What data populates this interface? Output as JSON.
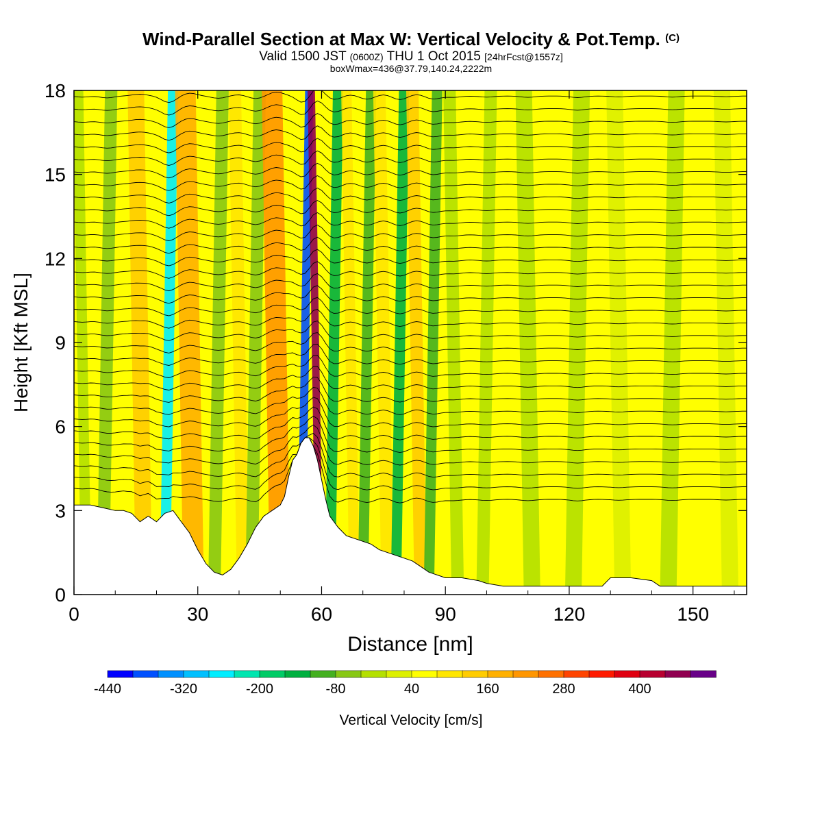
{
  "titles": {
    "main": "Wind-Parallel Section at Max W: Vertical Velocity & Pot.Temp.",
    "copyright": "(C)",
    "valid_prefix": "Valid 1500 JST",
    "valid_utc": "(0600Z)",
    "valid_date": "THU 1 Oct 2015",
    "forecast": "[24hrFcst@1557z]",
    "boxwmax": "boxWmax=436@37.79,140.24,2222m"
  },
  "chart_data": {
    "type": "heatmap",
    "xlabel": "Distance [nm]",
    "ylabel": "Height [Kft MSL]",
    "xlim": [
      0,
      163
    ],
    "ylim": [
      0,
      18
    ],
    "x_ticks": [
      0,
      30,
      60,
      90,
      120,
      150
    ],
    "y_ticks": [
      0,
      3,
      6,
      9,
      12,
      15,
      18
    ],
    "terrain_kft": [
      [
        0,
        3.2
      ],
      [
        4,
        3.2
      ],
      [
        7,
        3.1
      ],
      [
        10,
        3.0
      ],
      [
        12,
        3.0
      ],
      [
        14,
        2.9
      ],
      [
        16,
        2.6
      ],
      [
        18,
        2.8
      ],
      [
        20,
        2.6
      ],
      [
        22,
        2.9
      ],
      [
        24,
        3.0
      ],
      [
        26,
        2.6
      ],
      [
        28,
        2.2
      ],
      [
        30,
        1.6
      ],
      [
        32,
        1.1
      ],
      [
        34,
        0.8
      ],
      [
        36,
        0.7
      ],
      [
        38,
        0.9
      ],
      [
        40,
        1.3
      ],
      [
        42,
        1.8
      ],
      [
        44,
        2.4
      ],
      [
        46,
        2.8
      ],
      [
        48,
        3.0
      ],
      [
        50,
        3.2
      ],
      [
        51,
        3.5
      ],
      [
        52,
        4.2
      ],
      [
        53,
        4.8
      ],
      [
        54,
        5.0
      ],
      [
        55,
        5.4
      ],
      [
        56,
        5.6
      ],
      [
        57,
        5.6
      ],
      [
        58,
        5.3
      ],
      [
        59,
        4.8
      ],
      [
        60,
        4.1
      ],
      [
        61,
        3.4
      ],
      [
        62,
        2.8
      ],
      [
        64,
        2.4
      ],
      [
        66,
        2.1
      ],
      [
        68,
        2.0
      ],
      [
        70,
        1.9
      ],
      [
        72,
        1.8
      ],
      [
        74,
        1.6
      ],
      [
        76,
        1.5
      ],
      [
        78,
        1.4
      ],
      [
        80,
        1.3
      ],
      [
        82,
        1.2
      ],
      [
        84,
        1.0
      ],
      [
        86,
        0.8
      ],
      [
        88,
        0.7
      ],
      [
        90,
        0.6
      ],
      [
        94,
        0.6
      ],
      [
        98,
        0.5
      ],
      [
        100,
        0.4
      ],
      [
        104,
        0.3
      ],
      [
        110,
        0.3
      ],
      [
        120,
        0.3
      ],
      [
        128,
        0.3
      ],
      [
        130,
        0.6
      ],
      [
        135,
        0.6
      ],
      [
        140,
        0.5
      ],
      [
        142,
        0.3
      ],
      [
        150,
        0.3
      ],
      [
        163,
        0.3
      ]
    ],
    "w_features": [
      {
        "x": 2,
        "w": -60,
        "width": 2.5
      },
      {
        "x": 8,
        "w": -90,
        "width": 3
      },
      {
        "x": 16,
        "w": 80,
        "width": 4
      },
      {
        "x": 23,
        "w": -300,
        "width": 2.5
      },
      {
        "x": 28,
        "w": 130,
        "width": 5
      },
      {
        "x": 35,
        "w": -100,
        "width": 3
      },
      {
        "x": 40,
        "w": 60,
        "width": 3
      },
      {
        "x": 44,
        "w": -120,
        "width": 3
      },
      {
        "x": 49,
        "w": 170,
        "width": 5
      },
      {
        "x": 56,
        "w": -440,
        "width": 2
      },
      {
        "x": 58.5,
        "w": 436,
        "width": 1.8
      },
      {
        "x": 63,
        "w": -170,
        "width": 2.5
      },
      {
        "x": 67,
        "w": 60,
        "width": 2.5
      },
      {
        "x": 71,
        "w": -150,
        "width": 2.5
      },
      {
        "x": 75,
        "w": 70,
        "width": 3
      },
      {
        "x": 79,
        "w": -170,
        "width": 2.5
      },
      {
        "x": 83,
        "w": 80,
        "width": 3
      },
      {
        "x": 87,
        "w": -140,
        "width": 2.5
      },
      {
        "x": 92,
        "w": -60,
        "width": 3
      },
      {
        "x": 100,
        "w": -50,
        "width": 3
      },
      {
        "x": 110,
        "w": -60,
        "width": 4
      },
      {
        "x": 122,
        "w": -70,
        "width": 4
      },
      {
        "x": 132,
        "w": -40,
        "width": 4
      },
      {
        "x": 145,
        "w": -50,
        "width": 4
      },
      {
        "x": 158,
        "w": -30,
        "width": 4
      }
    ],
    "colorbar": {
      "label": "Vertical Velocity [cm/s]",
      "tick_labels": [
        "-440",
        "-320",
        "-200",
        "-80",
        "40",
        "160",
        "280",
        "400"
      ],
      "colors": [
        "#0000ff",
        "#0050ff",
        "#0090ff",
        "#00c0ff",
        "#00eeff",
        "#00e6b0",
        "#00cc66",
        "#00b040",
        "#44b020",
        "#88c814",
        "#b4e000",
        "#ddf000",
        "#ffff00",
        "#ffe600",
        "#ffcc00",
        "#ffb000",
        "#ff9600",
        "#ff7000",
        "#ff4400",
        "#ff1a00",
        "#e00010",
        "#b80030",
        "#900050",
        "#680088"
      ]
    }
  }
}
